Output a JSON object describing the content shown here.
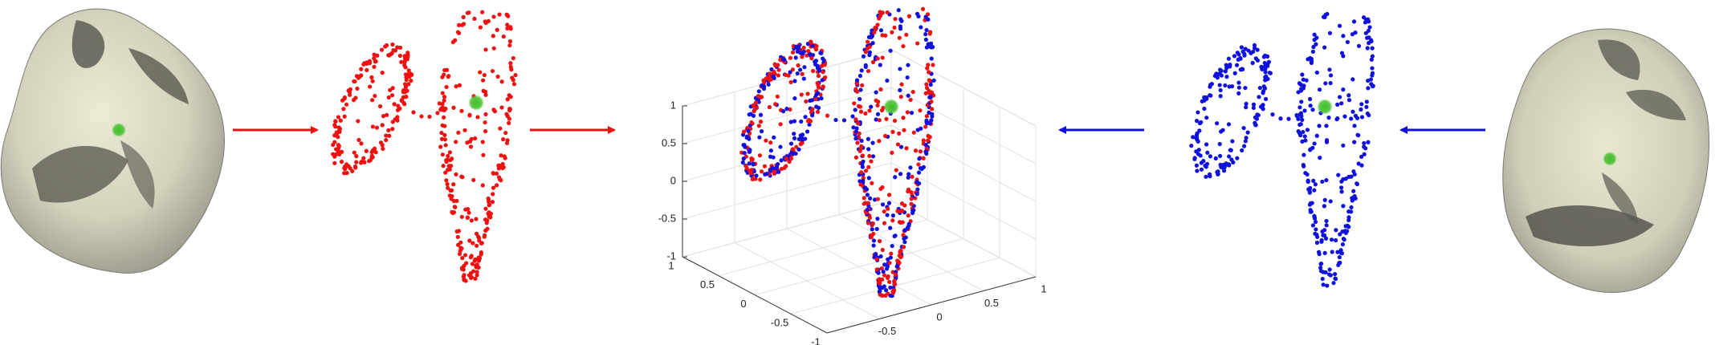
{
  "figure": {
    "plot3d": {
      "zticks": [
        1,
        0.5,
        0,
        -0.5,
        -1
      ],
      "yticks": [
        1,
        0.5,
        0,
        -0.5,
        -1
      ],
      "xticks": [
        -0.5,
        0,
        0.5,
        1
      ]
    }
  }
}
